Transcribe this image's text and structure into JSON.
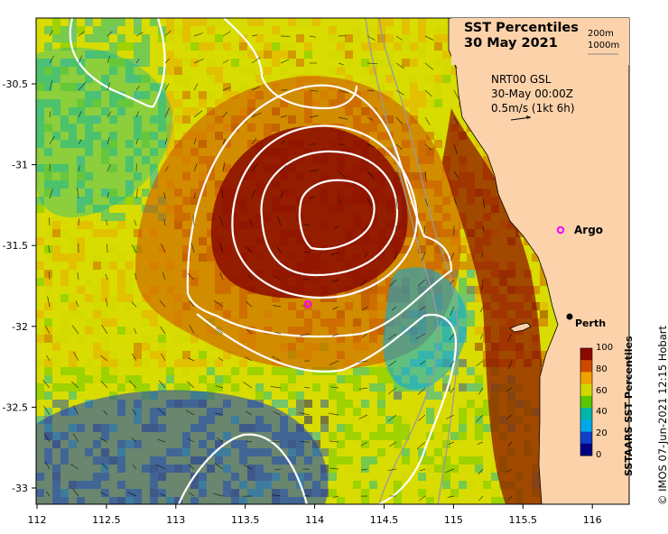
{
  "title": {
    "line1": "SST Percentiles",
    "line2": "30 May 2021"
  },
  "contour_key": {
    "line1": "200m",
    "line2": "1000m"
  },
  "current": {
    "line1": "NRT00 GSL",
    "line2": "30-May 00:00Z",
    "line3": "0.5m/s (1kt 6h)"
  },
  "axes": {
    "x_ticks": [
      "112",
      "112.5",
      "113",
      "113.5",
      "114",
      "114.5",
      "115",
      "115.5",
      "116"
    ],
    "y_ticks": [
      "-30.5",
      "-31",
      "-31.5",
      "-32",
      "-32.5",
      "-33"
    ]
  },
  "colorbar": {
    "title": "SSTAARS SST Percentiles",
    "ticks": [
      "100",
      "80",
      "60",
      "40",
      "20",
      "0"
    ],
    "colors": [
      "#8b0a00",
      "#cc4a00",
      "#f0a000",
      "#d0d800",
      "#58c600",
      "#00b4a8",
      "#00a8e8",
      "#1040c8",
      "#000080"
    ]
  },
  "places": {
    "argo": {
      "label": "Argo",
      "color": "#ff00ff"
    },
    "perth": {
      "label": "Perth",
      "color": "#000000"
    }
  },
  "credit": "© IMOS 07-Jun-2021 12:15 Hobart",
  "colors": {
    "land": "#fcd2aa",
    "contour": "#ffffff",
    "isobath": "#9a9a9a"
  }
}
